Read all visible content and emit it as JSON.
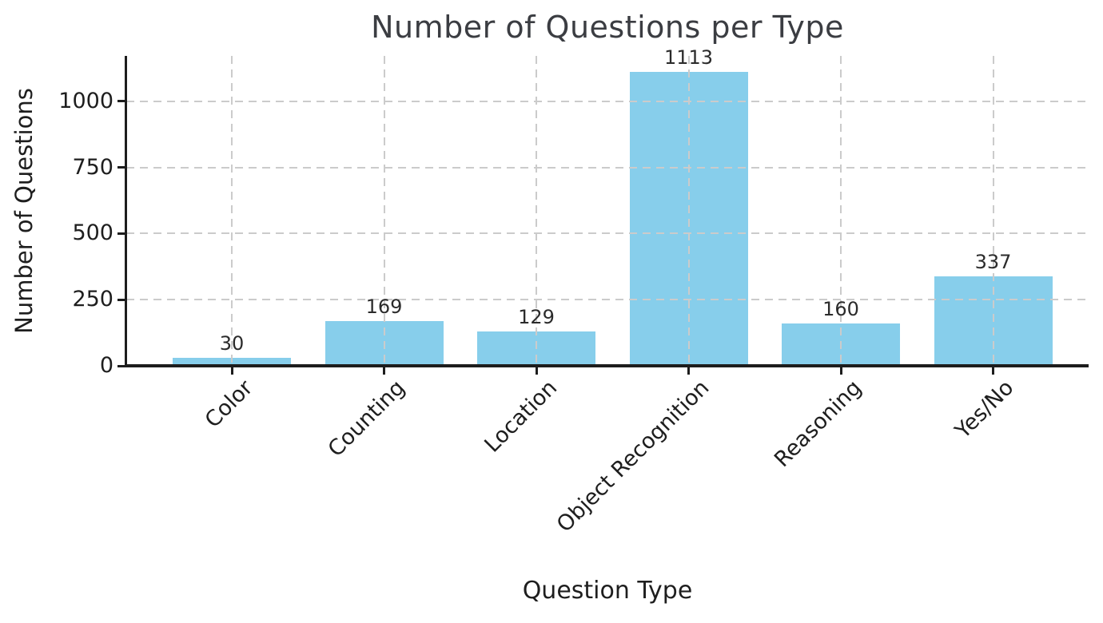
{
  "chart_data": {
    "type": "bar",
    "title": "Number of Questions per Type",
    "xlabel": "Question Type",
    "ylabel": "Number of Questions",
    "categories": [
      "Color",
      "Counting",
      "Location",
      "Object Recognition",
      "Reasoning",
      "Yes/No"
    ],
    "values": [
      30,
      169,
      129,
      1113,
      160,
      337
    ],
    "bar_labels": [
      30,
      169,
      129,
      1113,
      160,
      337
    ],
    "yticks": [
      0,
      250,
      500,
      750,
      1000
    ],
    "ylim": [
      0,
      1172
    ],
    "bar_color": "#87ceeb",
    "grid": true,
    "grid_color": "#cbcbcb",
    "grid_style": "dashed",
    "grid_above_bars": true,
    "spine_color": "#1d1d1d",
    "title_color": "#3b3d42",
    "text_color": "#1e1e1e",
    "x_tick_rotation": 45,
    "legend": false
  }
}
